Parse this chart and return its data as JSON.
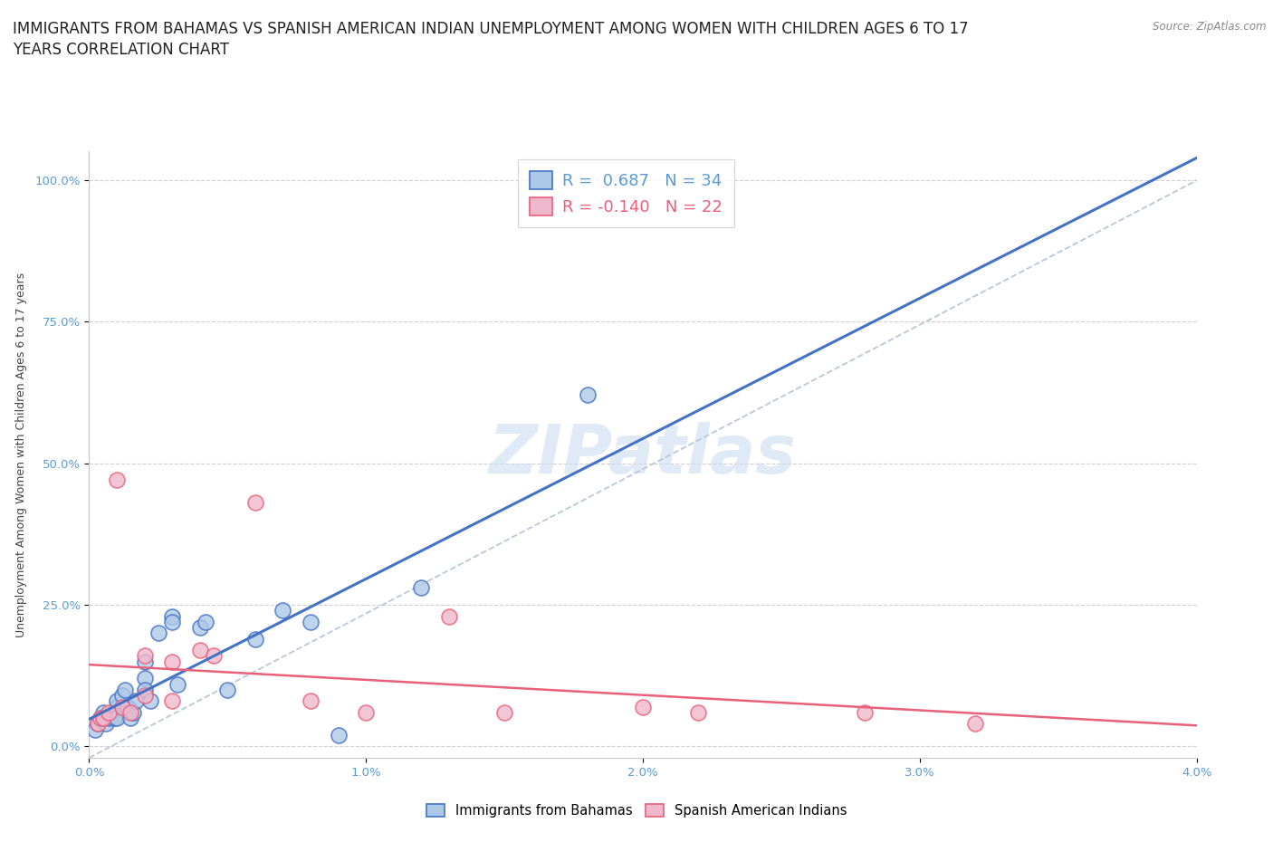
{
  "title_line1": "IMMIGRANTS FROM BAHAMAS VS SPANISH AMERICAN INDIAN UNEMPLOYMENT AMONG WOMEN WITH CHILDREN AGES 6 TO 17",
  "title_line2": "YEARS CORRELATION CHART",
  "source": "Source: ZipAtlas.com",
  "ylabel": "Unemployment Among Women with Children Ages 6 to 17 years",
  "yticks": [
    "0.0%",
    "25.0%",
    "50.0%",
    "75.0%",
    "100.0%"
  ],
  "ytick_vals": [
    0.0,
    0.25,
    0.5,
    0.75,
    1.0
  ],
  "xtick_labels": [
    "0.0%",
    "1.0%",
    "2.0%",
    "3.0%",
    "4.0%"
  ],
  "xtick_vals": [
    0.0,
    0.01,
    0.02,
    0.03,
    0.04
  ],
  "xlim": [
    0.0,
    0.04
  ],
  "ylim": [
    -0.02,
    1.05
  ],
  "legend1_R": "0.687",
  "legend1_N": "34",
  "legend2_R": "-0.140",
  "legend2_N": "22",
  "watermark": "ZIPatlas",
  "bahamas_color": "#aec8e8",
  "bahamas_edge_color": "#4472c4",
  "spanish_color": "#f0b8cc",
  "spanish_edge_color": "#e8607a",
  "bahamas_line_color": "#4472c4",
  "spanish_line_color": "#e8607a",
  "dash_color": "#b8c8d8",
  "grid_color": "#d0d0d0",
  "title_fontsize": 12,
  "axis_fontsize": 9,
  "tick_fontsize": 9.5,
  "bahamas_scatter_x": [
    0.0002,
    0.0003,
    0.0004,
    0.0005,
    0.0006,
    0.0007,
    0.0008,
    0.0009,
    0.001,
    0.001,
    0.001,
    0.0012,
    0.0013,
    0.0014,
    0.0015,
    0.0016,
    0.0017,
    0.002,
    0.002,
    0.002,
    0.0022,
    0.0025,
    0.003,
    0.003,
    0.0032,
    0.004,
    0.0042,
    0.005,
    0.006,
    0.007,
    0.008,
    0.009,
    0.012,
    0.018
  ],
  "bahamas_scatter_y": [
    0.03,
    0.04,
    0.05,
    0.06,
    0.04,
    0.05,
    0.06,
    0.05,
    0.07,
    0.08,
    0.05,
    0.09,
    0.1,
    0.07,
    0.05,
    0.06,
    0.08,
    0.12,
    0.1,
    0.15,
    0.08,
    0.2,
    0.23,
    0.22,
    0.11,
    0.21,
    0.22,
    0.1,
    0.19,
    0.24,
    0.22,
    0.02,
    0.28,
    0.62
  ],
  "spanish_scatter_x": [
    0.0003,
    0.0004,
    0.0005,
    0.0007,
    0.001,
    0.0012,
    0.0015,
    0.002,
    0.002,
    0.003,
    0.003,
    0.004,
    0.0045,
    0.006,
    0.008,
    0.01,
    0.013,
    0.015,
    0.02,
    0.022,
    0.028,
    0.032
  ],
  "spanish_scatter_y": [
    0.04,
    0.05,
    0.05,
    0.06,
    0.47,
    0.07,
    0.06,
    0.09,
    0.16,
    0.08,
    0.15,
    0.17,
    0.16,
    0.43,
    0.08,
    0.06,
    0.23,
    0.06,
    0.07,
    0.06,
    0.06,
    0.04
  ]
}
